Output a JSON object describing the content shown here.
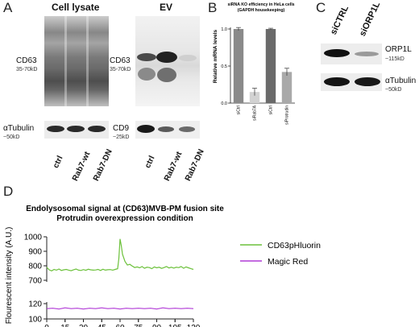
{
  "panels": {
    "a": {
      "letter": "A",
      "header_lysate": "Cell lysate",
      "header_ev": "EV",
      "cd63_label": "CD63",
      "cd63_size": "35-70kD",
      "cd63_label_ev": "CD63",
      "cd63_size_ev": "35-70kD",
      "tubulin_label": "αTubulin",
      "tubulin_size": "~50kD",
      "cd9_label": "CD9",
      "cd9_size": "~25kD",
      "lanes_lysate": [
        "ctrl",
        "Rab7-wt",
        "Rab7-DN"
      ],
      "lanes_ev": [
        "ctrl",
        "Rab7-wt",
        "Rab7-DN"
      ]
    },
    "b": {
      "letter": "B",
      "chart_data": {
        "type": "bar",
        "title": "siRNA KO efficiency in HeLa cells (GAPDH housekeeping)",
        "title_line1": "siRNA KO efficiency in HeLa cells",
        "title_line2": "(GAPDH housekeeping)",
        "ylabel": "Relative mRNA levels",
        "xlabel": "",
        "categories": [
          "siCtrl",
          "siRab7A",
          "siCtrl",
          "siProtrudin"
        ],
        "values": [
          1.0,
          0.15,
          1.0,
          0.42
        ],
        "errors": [
          0.02,
          0.05,
          0.01,
          0.05
        ],
        "bar_colors": [
          "#8a8a8a",
          "#d2d2d2",
          "#6a6a6a",
          "#a9a9a9"
        ],
        "ylim": [
          0,
          1.0
        ],
        "yticks": [
          "0.0",
          "0.5",
          "1.0"
        ],
        "ytick_values": [
          0,
          0.5,
          1.0
        ]
      }
    },
    "c": {
      "letter": "C",
      "lanes": [
        "siCTRL",
        "siORP1L"
      ],
      "orp1l_label": "ORP1L",
      "orp1l_size": "~115kD",
      "tubulin_label": "αTubulin",
      "tubulin_size": "~50kD"
    },
    "d": {
      "letter": "D",
      "chart_data": {
        "type": "line",
        "title_line1": "Endolysosomal signal at (CD63)MVB-PM fusion site",
        "title_line2": "Protrudin overexpression condition",
        "ylabel": "Flourescent intensity (A.U.)",
        "xlabel": "",
        "xlim": [
          0,
          120
        ],
        "xticks": [
          0,
          15,
          30,
          45,
          60,
          75,
          90,
          105,
          120
        ],
        "yticks_top": [
          700,
          800,
          900,
          1000
        ],
        "yticks_bottom": [
          100,
          120
        ],
        "axis_break": true,
        "legend_position": "top-right",
        "series": [
          {
            "name": "CD63pHluorin",
            "color": "#6cc13b",
            "x": [
              0,
              2,
              4,
              6,
              8,
              10,
              12,
              14,
              16,
              18,
              20,
              22,
              24,
              26,
              28,
              30,
              32,
              34,
              36,
              38,
              40,
              42,
              44,
              46,
              48,
              50,
              52,
              54,
              56,
              58,
              59,
              60,
              61,
              62,
              64,
              66,
              68,
              70,
              72,
              74,
              76,
              78,
              80,
              82,
              84,
              86,
              88,
              90,
              92,
              94,
              96,
              98,
              100,
              102,
              104,
              106,
              108,
              110,
              112,
              114,
              116,
              118,
              120
            ],
            "y": [
              790,
              772,
              765,
              775,
              770,
              778,
              768,
              772,
              775,
              770,
              766,
              773,
              778,
              770,
              768,
              774,
              769,
              776,
              772,
              770,
              771,
              775,
              768,
              776,
              770,
              773,
              774,
              770,
              775,
              780,
              850,
              985,
              940,
              880,
              830,
              805,
              810,
              798,
              788,
              792,
              786,
              795,
              783,
              790,
              788,
              780,
              792,
              786,
              790,
              782,
              788,
              795,
              785,
              790,
              784,
              790,
              787,
              795,
              783,
              792,
              786,
              780,
              775
            ]
          },
          {
            "name": "Magic Red",
            "color": "#b13bd6",
            "x": [
              0,
              5,
              10,
              15,
              20,
              25,
              30,
              35,
              40,
              45,
              50,
              55,
              60,
              65,
              70,
              75,
              80,
              85,
              90,
              95,
              100,
              105,
              110,
              115,
              120
            ],
            "y": [
              113.5,
              114,
              113,
              114.5,
              113.5,
              114,
              113,
              114,
              113.5,
              114.5,
              113.5,
              114,
              113,
              114,
              113.5,
              114,
              113.5,
              114,
              113,
              114.5,
              113.5,
              114,
              113.5,
              114,
              113.5
            ]
          }
        ]
      }
    }
  }
}
